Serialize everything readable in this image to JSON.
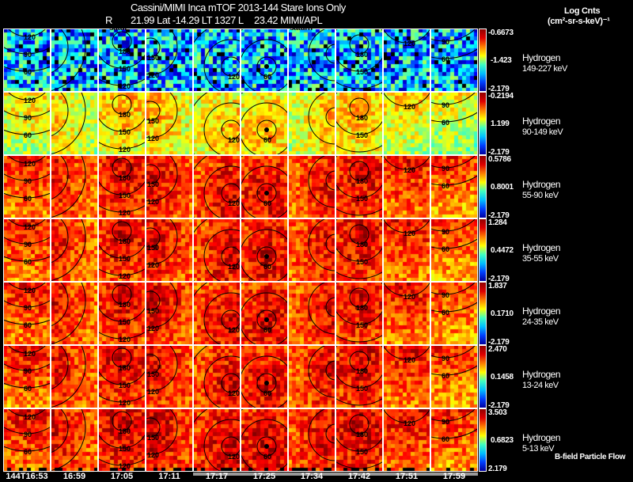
{
  "header": {
    "line1": "Cassini/MIMI Inca mTOF  2013-144   Stare   Ions Only",
    "line2_r": "R",
    "line2": "21.99 Lat -14.29 LT 1327 L",
    "line2_l": "23.42  MIMI/APL",
    "units1": "Log Cnts",
    "units2": "(cm²-sr-s-keV)⁻¹"
  },
  "saturn_labels": [
    "satur",
    "saturn"
  ],
  "footer_note": "B-field Particle Flow",
  "chart_data": {
    "type": "heatmap",
    "title": "Cassini/MIMI Inca mTOF 2013-144 Stare Ions Only",
    "x_times": [
      "144T16:53",
      "16:59",
      "17:05",
      "17:11",
      "17:17",
      "17:25",
      "17:34",
      "17:42",
      "17:51",
      "17:59"
    ],
    "rows": [
      {
        "species": "Hydrogen",
        "energy": "149-227 keV",
        "cmax": "-0.6673",
        "cmid": "-1.423",
        "cmin": "-2.179",
        "level": 0.3
      },
      {
        "species": "Hydrogen",
        "energy": "90-149 keV",
        "cmax": "-0.2194",
        "cmid": "1.199",
        "cmin": "-2.179",
        "level": 0.6
      },
      {
        "species": "Hydrogen",
        "energy": "55-90 keV",
        "cmax": "0.5786",
        "cmid": "0.8001",
        "cmin": "-2.179",
        "level": 0.8
      },
      {
        "species": "Hydrogen",
        "energy": "35-55 keV",
        "cmax": "1.284",
        "cmid": "0.4472",
        "cmin": "-2.179",
        "level": 0.8
      },
      {
        "species": "Hydrogen",
        "energy": "24-35 keV",
        "cmax": "1.837",
        "cmid": "0.1710",
        "cmin": "-2.179",
        "level": 0.8
      },
      {
        "species": "Hydrogen",
        "energy": "13-24 keV",
        "cmax": "2.470",
        "cmid": "0.1458",
        "cmin": "-2.179",
        "level": 0.8
      },
      {
        "species": "Hydrogen",
        "energy": "5-13 keV",
        "cmax": "3.503",
        "cmid": "0.6823",
        "cmin": "2.179",
        "level": 0.82
      }
    ],
    "contour_labels": [
      [
        "150",
        "120",
        "90",
        "60"
      ],
      [
        "120",
        "90",
        "60"
      ],
      [
        "180",
        "150",
        "120"
      ],
      [
        "150",
        "120"
      ],
      [
        "120",
        "90",
        "60"
      ],
      [
        "60",
        "30",
        "0"
      ],
      [
        "90",
        "60"
      ],
      [
        "180",
        "150",
        "120"
      ],
      [
        "150",
        "120"
      ],
      [
        "150",
        "120",
        "90",
        "60"
      ]
    ]
  }
}
